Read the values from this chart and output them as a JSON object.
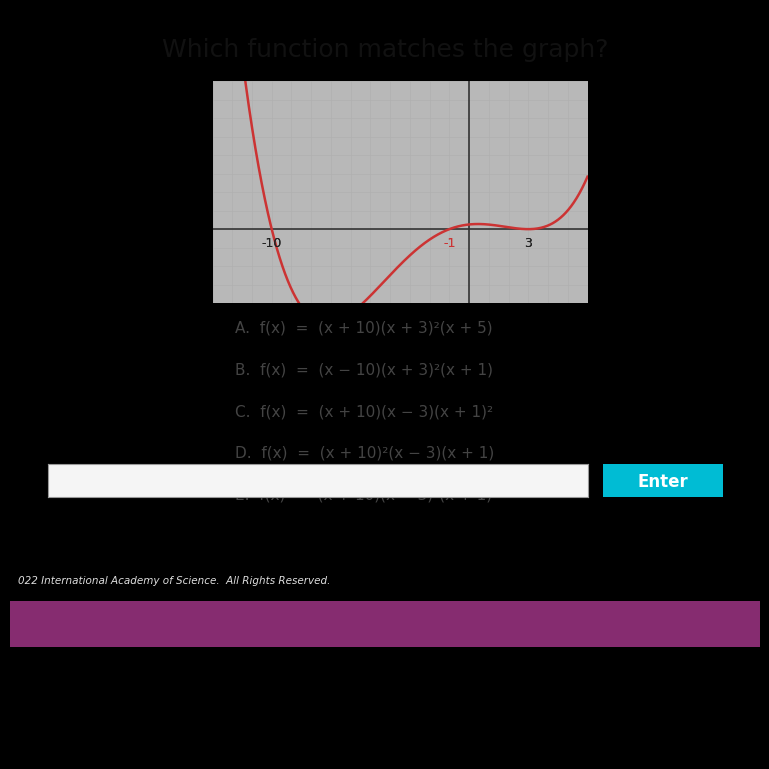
{
  "title": "Which function matches the graph?",
  "title_fontsize": 18,
  "curve_color": "#cc3333",
  "axis_color": "#333333",
  "background_color": "#c8c8c8",
  "graph_bg": "#cccccc",
  "grid_color": "#b0b0b0",
  "text_color": "#444444",
  "x_labels": [
    "-10",
    "-1",
    "3"
  ],
  "x_label_vals": [
    -10,
    -1,
    3
  ],
  "options": [
    "A.  f(x)  =  (x + 10)(x + 3)²(x + 5)",
    "B.  f(x)  =  (x − 10)(x + 3)²(x + 1)",
    "C.  f(x)  =  (x + 10)(x − 3)(x + 1)²",
    "D.  f(x)  =  (x + 10)²(x − 3)(x + 1)",
    "E.  f(x)  =  (x + 10)(x − 3)²(x + 1)"
  ],
  "enter_button_color": "#00bcd4",
  "enter_button_text": "Enter",
  "plot_xlim": [
    -13,
    6
  ],
  "plot_ylim": [
    -4,
    8
  ],
  "copyright": "022 International Academy of Science.  All Rights Reserved.",
  "taskbar_color": "#1a0a2e",
  "dark_bar_color": "#2a2a3a",
  "bottom_black": "#000000",
  "photo_bg": "#b8b8b8"
}
